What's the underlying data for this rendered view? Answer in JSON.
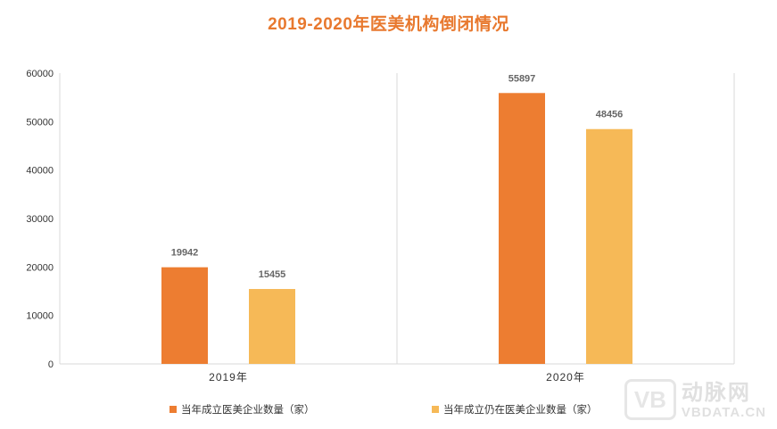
{
  "chart_data": {
    "type": "bar",
    "title": "2019-2020年医美机构倒闭情况",
    "categories": [
      "2019年",
      "2020年"
    ],
    "series": [
      {
        "name": "当年成立医美企业数量（家）",
        "values": [
          19942,
          55897
        ],
        "color": "#ED7D31"
      },
      {
        "name": "当年成立仍在医美企业数量（家）",
        "values": [
          15455,
          48456
        ],
        "color": "#F6B957"
      }
    ],
    "ylim": [
      0,
      60000
    ],
    "yticks": [
      0,
      10000,
      20000,
      30000,
      40000,
      50000,
      60000
    ],
    "grid": false,
    "legend_position": "bottom"
  },
  "watermark": {
    "logo_text": "VB",
    "name_cn": "动脉网",
    "name_en": "VBDATA.CN"
  }
}
